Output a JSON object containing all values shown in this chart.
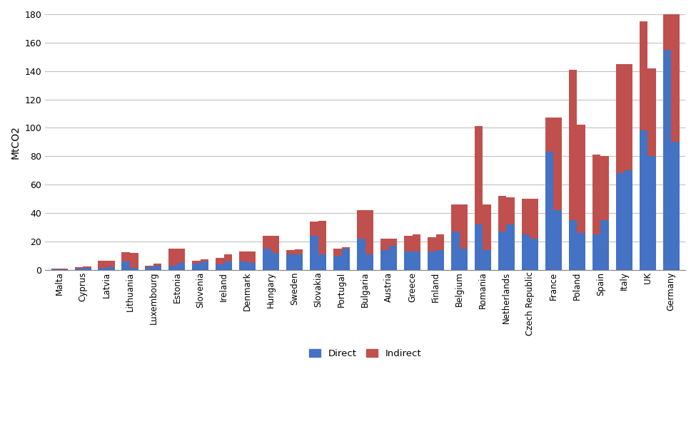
{
  "ylabel": "MtCO2",
  "countries": [
    "Malta",
    "Cyprus",
    "Latvia",
    "Lithuania",
    "Luxembourg",
    "Estonia",
    "Slovenia",
    "Ireland",
    "Denmark",
    "Hungary",
    "Sweden",
    "Slovakia",
    "Portugal",
    "Bulgaria",
    "Austria",
    "Greece",
    "Finland",
    "Belgium",
    "Romania",
    "Netherlands",
    "Czech Republic",
    "France",
    "Poland",
    "Spain",
    "Italy",
    "UK",
    "Germany"
  ],
  "direct_1990": [
    0.2,
    1.0,
    1.5,
    6.0,
    2.0,
    3.0,
    4.5,
    4.0,
    6.0,
    15.0,
    11.0,
    24.0,
    10.0,
    22.0,
    14.0,
    13.0,
    13.0,
    27.0,
    32.0,
    27.0,
    25.0,
    83.0,
    35.0,
    25.0,
    68.0,
    98.0,
    155.0
  ],
  "indirect_1990": [
    0.8,
    0.8,
    5.0,
    6.5,
    0.8,
    12.0,
    2.0,
    4.5,
    7.0,
    9.0,
    3.0,
    10.0,
    5.0,
    20.0,
    8.0,
    11.0,
    10.0,
    19.0,
    69.0,
    25.0,
    25.0,
    24.0,
    106.0,
    56.0,
    77.0,
    77.0,
    26.0
  ],
  "direct_2007": [
    0.2,
    1.5,
    2.0,
    1.5,
    3.0,
    5.0,
    6.0,
    6.0,
    5.0,
    12.0,
    11.0,
    11.0,
    15.0,
    11.0,
    17.0,
    13.0,
    14.0,
    15.0,
    14.0,
    32.0,
    22.0,
    42.0,
    26.0,
    35.0,
    70.0,
    80.0,
    90.0
  ],
  "indirect_2007": [
    0.8,
    0.8,
    4.5,
    10.5,
    1.5,
    10.0,
    1.5,
    5.0,
    8.0,
    12.0,
    3.5,
    23.5,
    1.0,
    31.0,
    5.0,
    12.0,
    11.0,
    31.0,
    32.0,
    19.0,
    28.0,
    65.0,
    76.0,
    45.0,
    75.0,
    62.0,
    91.0
  ],
  "color_direct": "#4472C4",
  "color_indirect": "#C0504D",
  "bar_width": 0.35,
  "ylim": [
    0,
    180
  ],
  "yticks": [
    0,
    20,
    40,
    60,
    80,
    100,
    120,
    140,
    160,
    180
  ],
  "background_color": "#FFFFFF",
  "grid_color": "#C0C0C0"
}
